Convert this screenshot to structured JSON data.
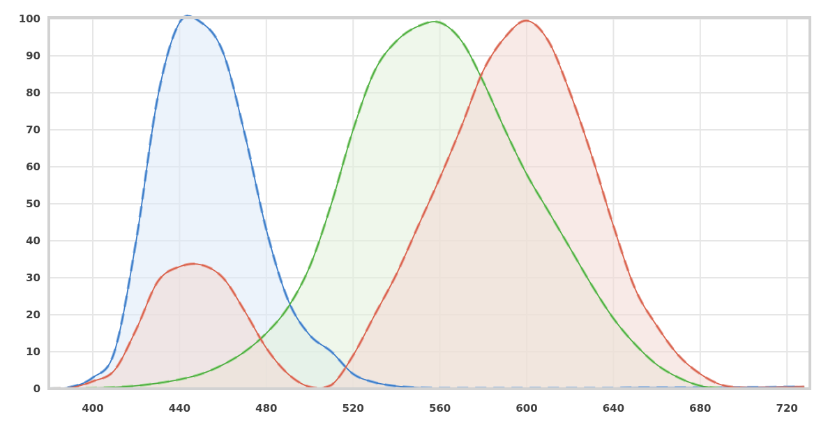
{
  "chart_data": {
    "type": "area",
    "title": "",
    "xlabel": "",
    "ylabel": "",
    "xlim": [
      380,
      730
    ],
    "ylim": [
      0,
      100
    ],
    "grid": true,
    "x_ticks": [
      400,
      440,
      480,
      520,
      560,
      600,
      640,
      680,
      720
    ],
    "y_ticks": [
      0,
      10,
      20,
      30,
      40,
      50,
      60,
      70,
      80,
      90,
      100
    ],
    "x": [
      380,
      390,
      400,
      410,
      420,
      430,
      440,
      450,
      460,
      470,
      480,
      490,
      500,
      510,
      520,
      530,
      540,
      550,
      560,
      570,
      580,
      590,
      600,
      610,
      620,
      630,
      640,
      650,
      660,
      670,
      680,
      690,
      700,
      710,
      720,
      728
    ],
    "series": [
      {
        "color": "#3a7bc8",
        "dash_color": "#8fb6e3",
        "fill": "#dce9f8",
        "values": [
          0,
          0.5,
          3,
          10,
          40,
          79,
          99,
          99,
          91,
          69,
          43,
          24,
          14.5,
          10,
          4,
          1.7,
          0.7,
          0.3,
          0.2,
          0.2,
          0.2,
          0.2,
          0.2,
          0.2,
          0.2,
          0.2,
          0.2,
          0.3,
          0.3,
          0.3,
          0.3,
          0.3,
          0.4,
          0.4,
          0.5,
          0.5
        ]
      },
      {
        "color": "#4cae3f",
        "dash_color": "#a9d99a",
        "fill": "#e2f1da",
        "values": [
          0,
          0.1,
          0.2,
          0.4,
          0.8,
          1.5,
          2.5,
          4,
          6.5,
          10,
          15,
          22,
          33,
          50,
          70,
          86,
          94,
          98,
          99,
          94,
          83,
          70,
          58,
          48,
          38,
          28,
          19,
          12,
          6.5,
          3,
          0.8,
          0.2,
          0.1,
          0.1,
          0.2,
          0.3
        ]
      },
      {
        "color": "#d9604a",
        "dash_color": "#e9a59a",
        "fill": "#f3d8d4",
        "values": [
          0,
          0.3,
          2,
          5,
          16,
          29,
          33,
          33.5,
          30,
          21,
          11,
          4,
          0.5,
          1,
          9,
          20,
          31,
          44,
          57,
          71,
          86,
          95,
          99.5,
          94,
          80,
          63,
          44,
          27,
          17,
          9,
          4,
          1,
          0.3,
          0.3,
          0.4,
          0.5
        ]
      }
    ]
  }
}
